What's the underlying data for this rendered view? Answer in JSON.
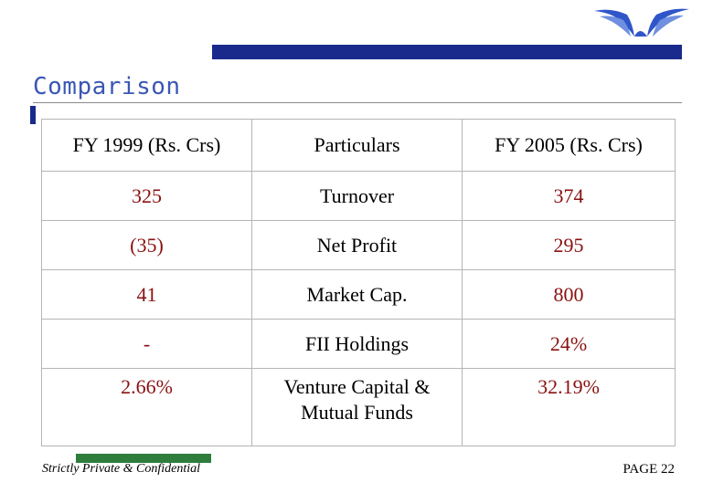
{
  "colors": {
    "brand_navy": "#1a2a8c",
    "title_blue": "#3a57b5",
    "value_red": "#8a1010",
    "footer_green": "#2e7d3c"
  },
  "header": {
    "logo_icon": "company-wing-logo-icon",
    "title": "Comparison"
  },
  "table": {
    "headers": [
      "FY 1999 (Rs. Crs)",
      "Particulars",
      "FY 2005 (Rs. Crs)"
    ],
    "rows": [
      {
        "fy1999": "325",
        "particular": "Turnover",
        "fy2005": "374"
      },
      {
        "fy1999": "(35)",
        "particular": "Net Profit",
        "fy2005": "295"
      },
      {
        "fy1999": "41",
        "particular": "Market Cap.",
        "fy2005": "800"
      },
      {
        "fy1999": "-",
        "particular": "FII Holdings",
        "fy2005": "24%"
      },
      {
        "fy1999": "2.66%",
        "particular": "Venture Capital & Mutual Funds",
        "fy2005": "32.19%"
      }
    ]
  },
  "footer": {
    "confidential": "Strictly Private & Confidential",
    "page": "PAGE 22"
  }
}
